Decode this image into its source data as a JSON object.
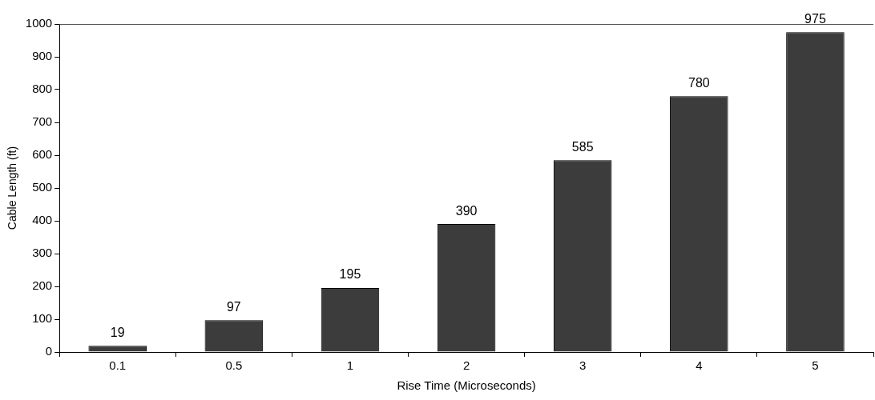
{
  "chart_data": {
    "type": "bar",
    "xlabel": "Rise Time (Microseconds)",
    "ylabel": "Cable Length (ft)",
    "categories": [
      "0.1",
      "0.5",
      "1",
      "2",
      "3",
      "4",
      "5"
    ],
    "values": [
      19,
      97,
      195,
      390,
      585,
      780,
      975
    ],
    "color": "#3c3c3c",
    "ylim": [
      0,
      1000
    ],
    "yticks": [
      0,
      100,
      200,
      300,
      400,
      500,
      600,
      700,
      800,
      900,
      1000
    ],
    "data_labels": true,
    "grid": false,
    "legend": false
  }
}
